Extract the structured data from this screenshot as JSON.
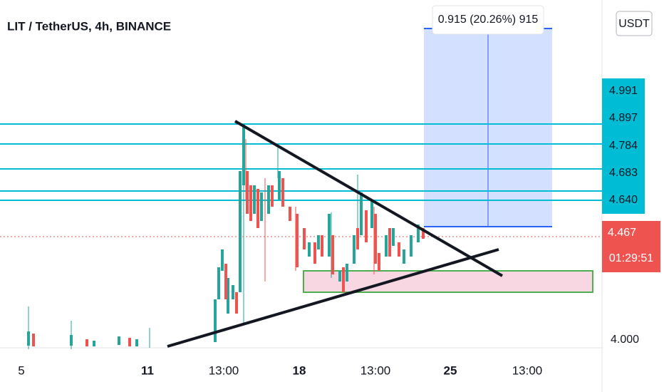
{
  "header": {
    "title": "LIT / TetherUS, 4h, BINANCE",
    "currency": "USDT"
  },
  "measure": {
    "label": "0.915 (20.26%) 915"
  },
  "price_axis": {
    "labels": [
      "4.991",
      "4.897",
      "4.784",
      "4.683",
      "4.640"
    ],
    "last_price": "4.467",
    "countdown": "01:29:51",
    "bottom": "4.000"
  },
  "time_axis": [
    "5",
    "11",
    "13:00",
    "18",
    "13:00",
    "25",
    "13:00"
  ]
}
